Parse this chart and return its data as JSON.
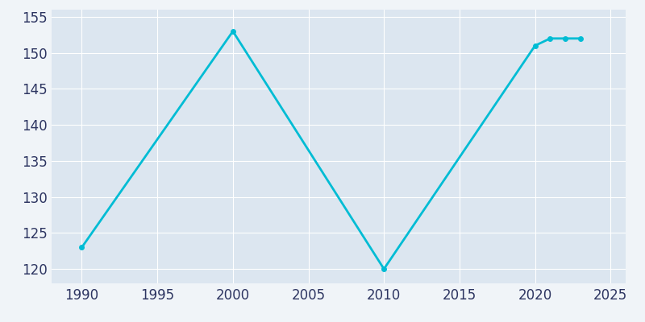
{
  "years": [
    1990,
    2000,
    2010,
    2020,
    2021,
    2022,
    2023
  ],
  "population": [
    123,
    153,
    120,
    151,
    152,
    152,
    152
  ],
  "line_color": "#00bcd4",
  "marker": "o",
  "marker_size": 4,
  "line_width": 2,
  "figure_bg": "#f0f4f8",
  "plot_bg": "#dce6f0",
  "grid_color": "#ffffff",
  "tick_color": "#2d3561",
  "xlim": [
    1988,
    2026
  ],
  "ylim": [
    118,
    156
  ],
  "xticks": [
    1990,
    1995,
    2000,
    2005,
    2010,
    2015,
    2020,
    2025
  ],
  "yticks": [
    120,
    125,
    130,
    135,
    140,
    145,
    150,
    155
  ],
  "tick_labelsize": 12
}
